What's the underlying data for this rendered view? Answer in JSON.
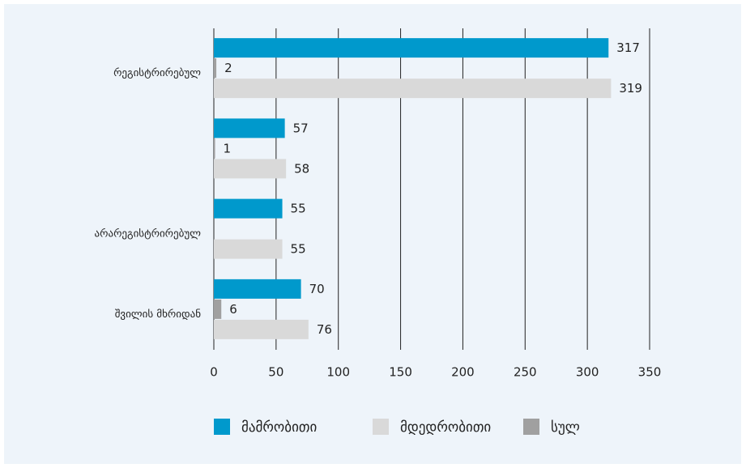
{
  "chart_data": {
    "type": "hbar",
    "categories": [
      "რეგისტრირებულ",
      null,
      "არარეგისტრირებულ",
      "შვილის მხრიდან"
    ],
    "series": [
      {
        "name": "მამრობითი",
        "color": "#0099cc",
        "values": [
          317,
          57,
          55,
          70
        ]
      },
      {
        "name": "სულ",
        "color": "#a0a0a0",
        "values": [
          2,
          1,
          null,
          6
        ]
      },
      {
        "name": "მდედრობითი",
        "color": "#d9d9d9",
        "values": [
          319,
          58,
          55,
          76
        ]
      }
    ],
    "legend_order": [
      0,
      2,
      1
    ],
    "xlim": [
      0,
      350
    ],
    "xticks": [
      0,
      50,
      100,
      150,
      200,
      250,
      300,
      350
    ],
    "grid": true,
    "legend": "bottom"
  }
}
